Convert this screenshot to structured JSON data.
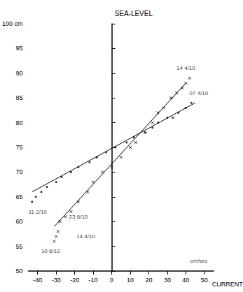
{
  "chart_data": {
    "type": "scatter",
    "y_label": "SEA-LEVEL",
    "x_label": "CURRENT",
    "xlim": [
      -45,
      55
    ],
    "xticks": [
      -40,
      -30,
      -20,
      -10,
      0,
      10,
      20,
      30,
      40,
      50
    ],
    "ylim": [
      50,
      100
    ],
    "yticks": [
      50,
      55,
      60,
      65,
      70,
      75,
      80,
      85,
      90,
      95,
      {
        "value": 100,
        "label": "100 cm"
      }
    ],
    "grid": false,
    "series": [
      {
        "type": "scatter",
        "marker": "cross",
        "color": "#000000",
        "x": [
          -31,
          -30,
          -29,
          -28,
          -25,
          -22,
          -18,
          -13,
          -10,
          -5,
          0,
          5,
          10,
          13,
          18,
          22,
          25,
          28,
          32,
          35,
          38,
          40,
          42
        ],
        "values": [
          56,
          57,
          58,
          60,
          61,
          62,
          64,
          66,
          68,
          70,
          71,
          73,
          75,
          76,
          78,
          80,
          82,
          83,
          85,
          86,
          87,
          88,
          89
        ]
      },
      {
        "type": "scatter",
        "marker": "dot",
        "color": "#000000",
        "x": [
          -43,
          -41,
          -38,
          -35,
          -30,
          -27,
          -22,
          -18,
          -12,
          -8,
          -3,
          2,
          8,
          12,
          18,
          22,
          25,
          30,
          33,
          36,
          40,
          43
        ],
        "values": [
          64,
          65,
          66,
          67,
          68,
          69,
          70,
          71,
          72,
          73,
          74,
          75,
          76,
          77,
          78,
          79,
          80,
          81,
          81,
          82,
          83,
          84
        ]
      },
      {
        "type": "line",
        "line_style": "solid",
        "color": "#000000",
        "x": [
          -31,
          40
        ],
        "values": [
          59,
          88
        ]
      },
      {
        "type": "line",
        "line_style": "solid",
        "color": "#000000",
        "x": [
          -43,
          45
        ],
        "values": [
          66,
          84
        ]
      }
    ],
    "annotations": [
      {
        "x": 40,
        "y": 91,
        "text": "14 4/10"
      },
      {
        "x": 47,
        "y": 86,
        "text": "07 4/10"
      },
      {
        "x": -40,
        "y": 62,
        "text": "11 2/10"
      },
      {
        "x": -18,
        "y": 61,
        "text": "23 6/10"
      },
      {
        "x": -14,
        "y": 57,
        "text": "14 4/10"
      },
      {
        "x": -33,
        "y": 54,
        "text": "10 6/10"
      },
      {
        "x": 47,
        "y": 52,
        "text": "cm/sec"
      }
    ]
  }
}
